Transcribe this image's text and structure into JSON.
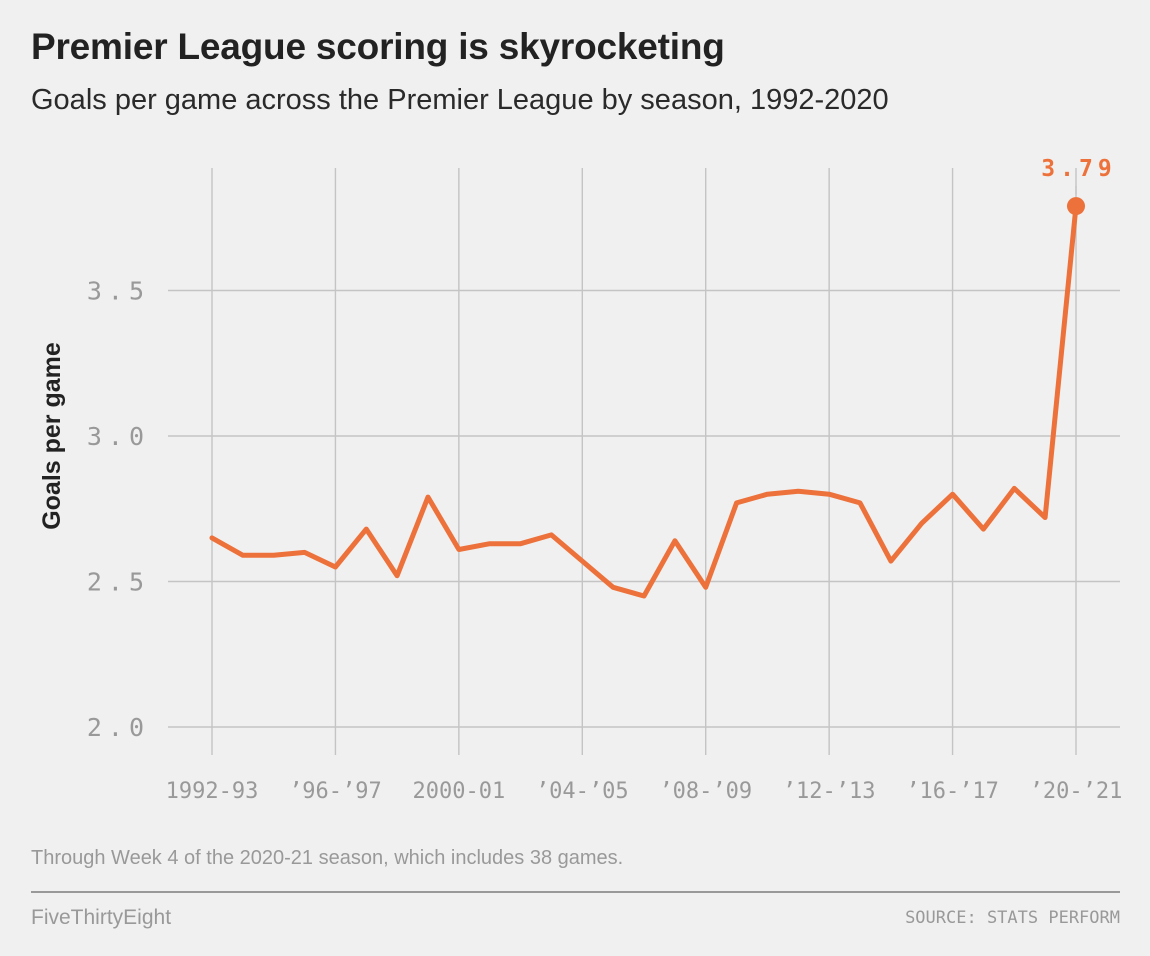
{
  "header": {
    "title": "Premier League scoring is skyrocketing",
    "subtitle": "Goals per game across the Premier League by season, 1992-2020"
  },
  "footer": {
    "note": "Through Week 4 of the 2020-21 season, which includes 38 games.",
    "brand": "FiveThirtyEight",
    "source": "SOURCE: STATS PERFORM"
  },
  "colors": {
    "line": "#ed713a",
    "grid": "#c4c4c4",
    "tick_text": "#999999",
    "background": "#f0f0f0"
  },
  "chart_data": {
    "type": "line",
    "title": "Premier League scoring is skyrocketing",
    "subtitle": "Goals per game across the Premier League by season, 1992-2020",
    "ylabel": "Goals per game",
    "xlabel": "",
    "ylim": [
      2.0,
      3.79
    ],
    "yticks": [
      2.0,
      2.5,
      3.0,
      3.5
    ],
    "ytick_labels": [
      "2.0",
      "2.5",
      "3.0",
      "3.5"
    ],
    "xticks": [
      "1992-93",
      "1996-97",
      "2000-01",
      "2004-05",
      "2008-09",
      "2012-13",
      "2016-17",
      "2020-21"
    ],
    "xtick_labels": [
      "1992-93",
      "’96-’97",
      "2000-01",
      "’04-’05",
      "’08-’09",
      "’12-’13",
      "’16-’17",
      "’20-’21"
    ],
    "grid": true,
    "x": [
      "1992-93",
      "1993-94",
      "1994-95",
      "1995-96",
      "1996-97",
      "1997-98",
      "1998-99",
      "1999-00",
      "2000-01",
      "2001-02",
      "2002-03",
      "2003-04",
      "2004-05",
      "2005-06",
      "2006-07",
      "2007-08",
      "2008-09",
      "2009-10",
      "2010-11",
      "2011-12",
      "2012-13",
      "2013-14",
      "2014-15",
      "2015-16",
      "2016-17",
      "2017-18",
      "2018-19",
      "2019-20",
      "2020-21"
    ],
    "series": [
      {
        "values": [
          2.65,
          2.59,
          2.59,
          2.6,
          2.55,
          2.68,
          2.52,
          2.79,
          2.61,
          2.63,
          2.63,
          2.66,
          2.57,
          2.48,
          2.45,
          2.64,
          2.48,
          2.77,
          2.8,
          2.81,
          2.8,
          2.77,
          2.57,
          2.7,
          2.8,
          2.68,
          2.82,
          2.72,
          3.79
        ]
      }
    ],
    "annotation": {
      "x": "2020-21",
      "value": 3.79,
      "label": "3.79"
    }
  }
}
